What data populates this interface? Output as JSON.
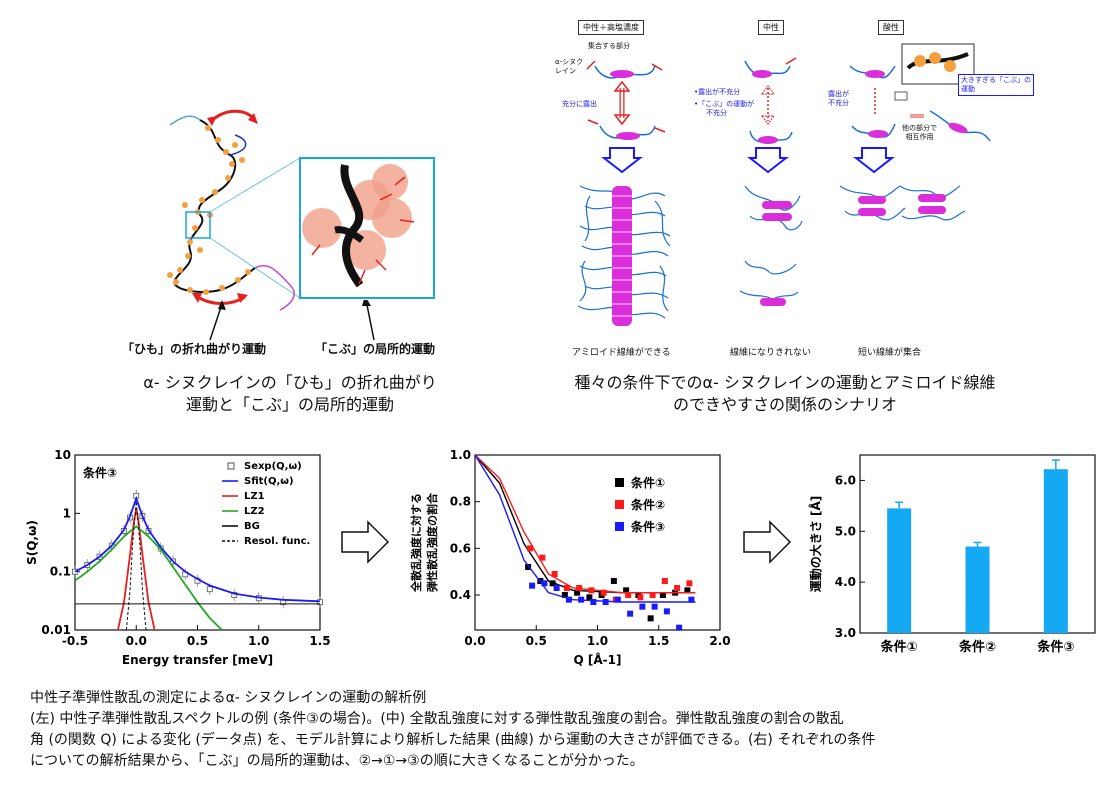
{
  "top_left": {
    "label_himo": "「ひも」の折れ曲がり運動",
    "label_kobu": "「こぶ」の局所的運動",
    "caption_line1": "α- シヌクレインの「ひも」の折れ曲がり",
    "caption_line2": "運動と「こぶ」の局所的運動"
  },
  "top_right": {
    "col_headers": [
      "中性＋高塩濃度",
      "中性",
      "酸性"
    ],
    "ann_aggregate_part": "集合する部分",
    "ann_syn_line1": "α-シヌク",
    "ann_syn_line2": "レイン",
    "ann_fully_exposed": "充分に露出",
    "ann_insufficient_exposure": "•露出が不充分",
    "ann_kobu_insufficient_line1": "•「こぶ」の運動が",
    "ann_kobu_insufficient_line2": "不充分",
    "ann_acid_exposure_line1": "露出が",
    "ann_acid_exposure_line2": "不充分",
    "ann_too_big_line1": "大きすぎる「こぶ」の",
    "ann_too_big_line2": "運動",
    "ann_other_part_line1": "他の部分で",
    "ann_other_part_line2": "相互作用",
    "bottom_labels": [
      "アミロイド線維ができる",
      "線維になりきれない",
      "短い線維が集合"
    ],
    "caption_line1": "種々の条件下でのα- シヌクレインの運動とアミロイド線維",
    "caption_line2": "のできやすさの関係のシナリオ"
  },
  "chart_data": [
    {
      "type": "line",
      "title": "条件③",
      "xlabel": "Energy transfer [meV]",
      "ylabel": "S(Q,ω)",
      "xlim": [
        -0.5,
        1.5
      ],
      "ylim": [
        0.01,
        10
      ],
      "yscale": "log",
      "xticks": [
        "-0.5",
        "0.0",
        "0.5",
        "1.0",
        "1.5"
      ],
      "yticks": [
        "0.01",
        "0.1",
        "1",
        "10"
      ],
      "legend_position": "top-right",
      "legend": [
        "Sexp(Q,ω)",
        "Sfit(Q,ω)",
        "LZ1",
        "LZ2",
        "BG",
        "Resol. func."
      ],
      "series": [
        {
          "name": "Sexp(Q,ω)",
          "x": [
            -0.5,
            -0.4,
            -0.3,
            -0.2,
            -0.1,
            -0.05,
            0.0,
            0.05,
            0.1,
            0.2,
            0.3,
            0.4,
            0.5,
            0.6,
            0.8,
            1.0,
            1.2,
            1.5
          ],
          "y": [
            0.1,
            0.13,
            0.18,
            0.28,
            0.5,
            0.85,
            2.0,
            0.9,
            0.5,
            0.25,
            0.15,
            0.09,
            0.07,
            0.05,
            0.04,
            0.035,
            0.03,
            0.03
          ]
        },
        {
          "name": "Sfit(Q,ω)",
          "x": [
            -0.5,
            -0.4,
            -0.3,
            -0.2,
            -0.1,
            -0.05,
            0.0,
            0.05,
            0.1,
            0.2,
            0.3,
            0.4,
            0.5,
            0.6,
            0.8,
            1.0,
            1.2,
            1.5
          ],
          "y": [
            0.1,
            0.13,
            0.18,
            0.28,
            0.52,
            0.9,
            1.8,
            0.9,
            0.52,
            0.26,
            0.15,
            0.1,
            0.075,
            0.058,
            0.042,
            0.036,
            0.033,
            0.031
          ]
        },
        {
          "name": "LZ1",
          "x": [
            -0.15,
            -0.1,
            -0.05,
            -0.02,
            0.0,
            0.02,
            0.05,
            0.1,
            0.15
          ],
          "y": [
            0.01,
            0.03,
            0.2,
            0.7,
            1.2,
            0.7,
            0.2,
            0.03,
            0.01
          ]
        },
        {
          "name": "LZ2",
          "x": [
            -0.5,
            -0.4,
            -0.3,
            -0.2,
            -0.1,
            0.0,
            0.1,
            0.2,
            0.3,
            0.4,
            0.5,
            0.6,
            0.7
          ],
          "y": [
            0.07,
            0.1,
            0.15,
            0.24,
            0.4,
            0.6,
            0.4,
            0.24,
            0.12,
            0.06,
            0.03,
            0.016,
            0.01
          ]
        },
        {
          "name": "BG",
          "x": [
            -0.5,
            1.5
          ],
          "y": [
            0.028,
            0.028
          ]
        },
        {
          "name": "Resol. func.",
          "x": [
            -0.08,
            -0.05,
            -0.03,
            0.0,
            0.03,
            0.05,
            0.08
          ],
          "y": [
            0.01,
            0.05,
            0.3,
            1.6,
            0.3,
            0.05,
            0.01
          ]
        }
      ]
    },
    {
      "type": "scatter",
      "xlabel": "Q [Å-1]",
      "ylabel_line1": "全散乱強度に対する",
      "ylabel_line2": "弾性散乱強度の割合",
      "xlim": [
        0.0,
        2.0
      ],
      "ylim": [
        0.25,
        1.0
      ],
      "xticks": [
        "0.0",
        "0.5",
        "1.0",
        "1.5",
        "2.0"
      ],
      "yticks": [
        "0.4",
        "0.6",
        "0.8",
        "1.0"
      ],
      "legend_position": "top-right",
      "series": [
        {
          "name": "条件①",
          "color": "#000000",
          "x": [
            0.45,
            0.55,
            0.65,
            0.75,
            0.85,
            0.95,
            1.05,
            1.15,
            1.25,
            1.35,
            1.45,
            1.55,
            1.65,
            1.75
          ],
          "y": [
            0.52,
            0.46,
            0.45,
            0.4,
            0.41,
            0.39,
            0.4,
            0.46,
            0.42,
            0.4,
            0.3,
            0.4,
            0.41,
            0.42
          ],
          "fit": [
            [
              0.0,
              1.0
            ],
            [
              0.2,
              0.88
            ],
            [
              0.4,
              0.62
            ],
            [
              0.6,
              0.46
            ],
            [
              0.8,
              0.42
            ],
            [
              1.2,
              0.41
            ],
            [
              1.8,
              0.41
            ]
          ]
        },
        {
          "name": "条件②",
          "color": "#ff1a1a",
          "x": [
            0.45,
            0.55,
            0.65,
            0.75,
            0.85,
            0.95,
            1.05,
            1.15,
            1.25,
            1.35,
            1.45,
            1.55,
            1.65,
            1.75
          ],
          "y": [
            0.6,
            0.56,
            0.49,
            0.43,
            0.43,
            0.42,
            0.41,
            0.38,
            0.4,
            0.39,
            0.4,
            0.46,
            0.43,
            0.45
          ],
          "fit": [
            [
              0.0,
              1.0
            ],
            [
              0.2,
              0.9
            ],
            [
              0.4,
              0.67
            ],
            [
              0.6,
              0.49
            ],
            [
              0.8,
              0.43
            ],
            [
              1.2,
              0.41
            ],
            [
              1.8,
              0.41
            ]
          ]
        },
        {
          "name": "条件③",
          "color": "#1a1aff",
          "x": [
            0.45,
            0.55,
            0.65,
            0.75,
            0.85,
            0.95,
            1.05,
            1.15,
            1.25,
            1.35,
            1.45,
            1.55,
            1.65,
            1.75
          ],
          "y": [
            0.44,
            0.45,
            0.43,
            0.38,
            0.38,
            0.37,
            0.37,
            0.38,
            0.32,
            0.35,
            0.35,
            0.33,
            0.26,
            0.38
          ],
          "fit": [
            [
              0.0,
              1.0
            ],
            [
              0.2,
              0.83
            ],
            [
              0.4,
              0.55
            ],
            [
              0.6,
              0.41
            ],
            [
              0.8,
              0.38
            ],
            [
              1.2,
              0.37
            ],
            [
              1.8,
              0.37
            ]
          ]
        }
      ]
    },
    {
      "type": "bar",
      "categories": [
        "条件①",
        "条件②",
        "条件③"
      ],
      "values": [
        5.45,
        4.7,
        6.22
      ],
      "errors": [
        0.12,
        0.08,
        0.18
      ],
      "ylabel": "運動の大きさ [Å]",
      "ylim": [
        3.0,
        6.5
      ],
      "yticks": [
        "3.0",
        "4.0",
        "5.0",
        "6.0"
      ],
      "color": "#14a9f2"
    }
  ],
  "description": {
    "line1": "中性子準弾性散乱の測定によるα- シヌクレインの運動の解析例",
    "line2": "(左) 中性子準弾性散乱スペクトルの例 (条件③の場合)。(中) 全散乱強度に対する弾性散乱強度の割合。弾性散乱強度の割合の散乱",
    "line3": "角 (の関数 Q) による変化 (データ点) を、モデル計算により解析した結果 (曲線) から運動の大きさが評価できる。(右) それぞれの条件",
    "line4": "についての解析結果から、「こぶ」の局所的運動は、②→①→③の順に大きくなることが分かった。"
  }
}
